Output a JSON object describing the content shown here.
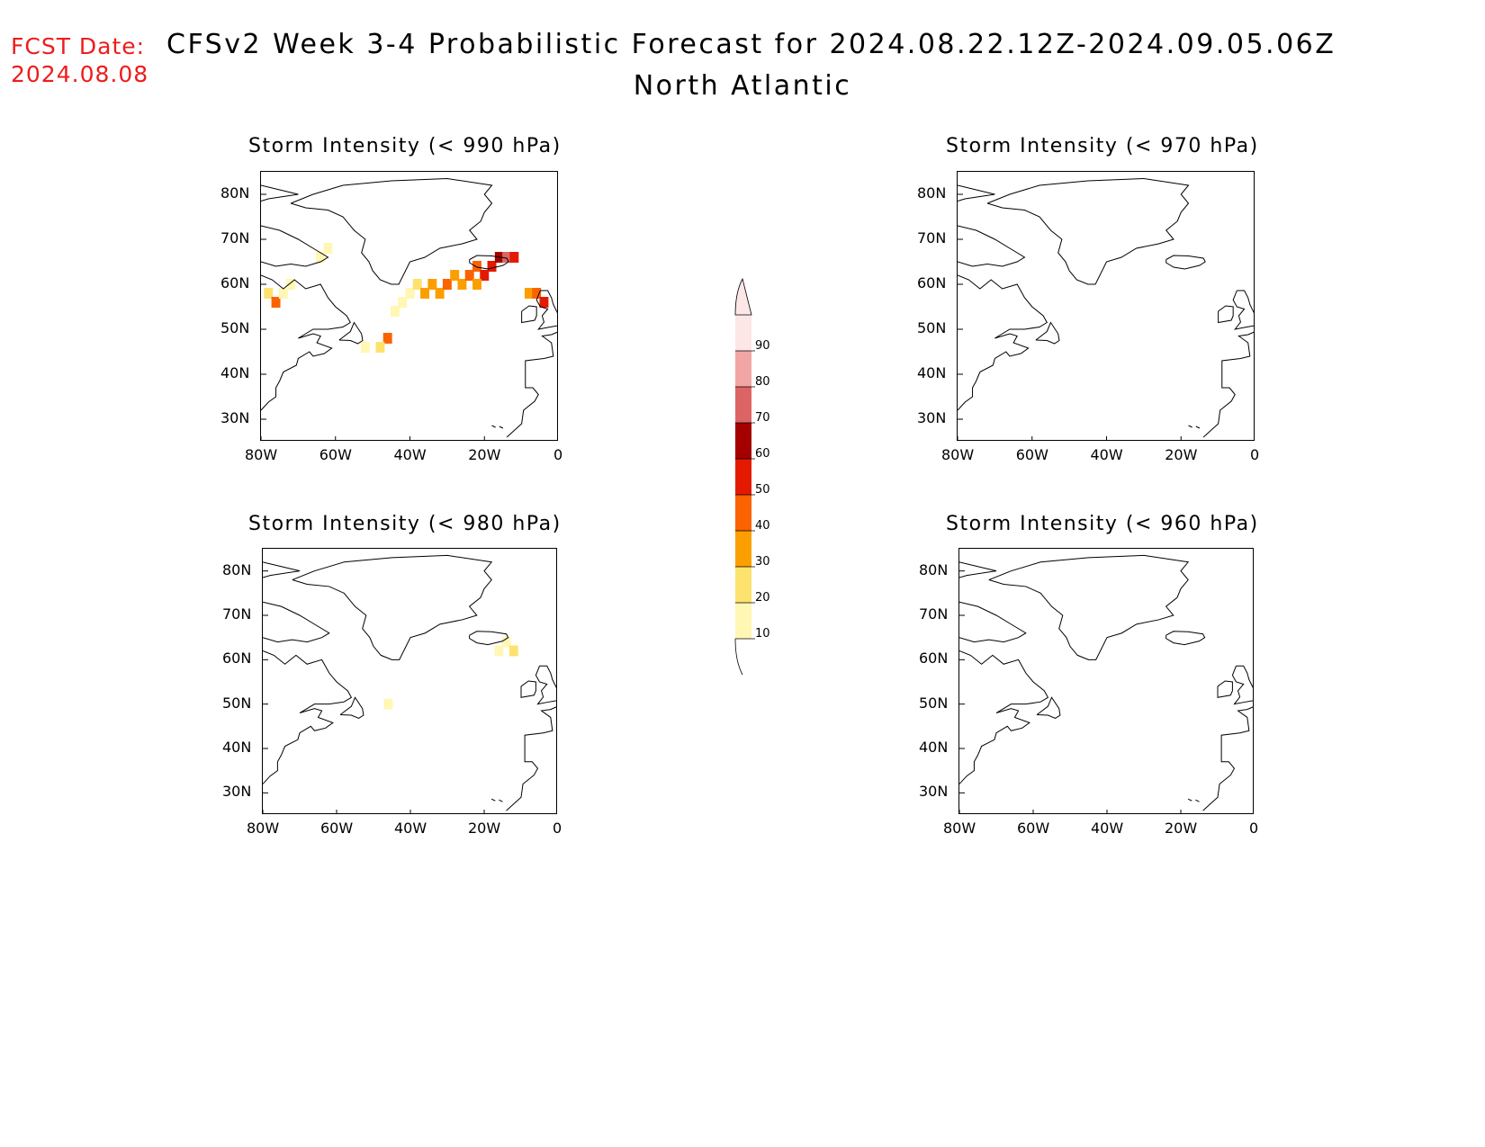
{
  "header": {
    "fcst_label": "FCST Date:",
    "fcst_date": "2024.08.08",
    "title": "CFSv2 Week 3-4 Probabilistic Forecast for 2024.08.22.12Z-2024.09.05.06Z",
    "subtitle": "North Atlantic"
  },
  "panels": [
    {
      "id": "p990",
      "title": "Storm Intensity (< 990 hPa)"
    },
    {
      "id": "p970",
      "title": "Storm Intensity (< 970 hPa)"
    },
    {
      "id": "p980",
      "title": "Storm Intensity (< 980 hPa)"
    },
    {
      "id": "p960",
      "title": "Storm Intensity (< 960 hPa)"
    }
  ],
  "axes": {
    "lat_labels": [
      "80N",
      "70N",
      "60N",
      "50N",
      "40N",
      "30N"
    ],
    "lon_labels": [
      "80W",
      "60W",
      "40W",
      "20W",
      "0"
    ],
    "lat_range": [
      25,
      85
    ],
    "lon_range": [
      -80,
      0
    ]
  },
  "colorbar": {
    "levels": [
      "10",
      "20",
      "30",
      "40",
      "50",
      "60",
      "70",
      "80",
      "90"
    ],
    "colors": [
      "#fff7b3",
      "#fde26e",
      "#fb9f00",
      "#fb6200",
      "#e31a00",
      "#a50000",
      "#dc6464",
      "#f2a5a5",
      "#fde6e6"
    ]
  },
  "chart_data": {
    "type": "heatmap",
    "units": "probability (%)",
    "panels": {
      "p990": [
        {
          "lon": -62,
          "lat": 68,
          "level": 1
        },
        {
          "lon": -64,
          "lat": 66,
          "level": 1
        },
        {
          "lon": -78,
          "lat": 58,
          "level": 2
        },
        {
          "lon": -76,
          "lat": 56,
          "level": 4
        },
        {
          "lon": -74,
          "lat": 58,
          "level": 1
        },
        {
          "lon": -72,
          "lat": 60,
          "level": 1
        },
        {
          "lon": -40,
          "lat": 58,
          "level": 1
        },
        {
          "lon": -38,
          "lat": 60,
          "level": 2
        },
        {
          "lon": -36,
          "lat": 58,
          "level": 3
        },
        {
          "lon": -34,
          "lat": 60,
          "level": 3
        },
        {
          "lon": -32,
          "lat": 58,
          "level": 3
        },
        {
          "lon": -30,
          "lat": 60,
          "level": 4
        },
        {
          "lon": -28,
          "lat": 62,
          "level": 3
        },
        {
          "lon": -26,
          "lat": 60,
          "level": 3
        },
        {
          "lon": -24,
          "lat": 62,
          "level": 4
        },
        {
          "lon": -22,
          "lat": 64,
          "level": 4
        },
        {
          "lon": -20,
          "lat": 62,
          "level": 5
        },
        {
          "lon": -18,
          "lat": 64,
          "level": 5
        },
        {
          "lon": -16,
          "lat": 66,
          "level": 6
        },
        {
          "lon": -14,
          "lat": 66,
          "level": 7
        },
        {
          "lon": -12,
          "lat": 66,
          "level": 5
        },
        {
          "lon": -22,
          "lat": 60,
          "level": 3
        },
        {
          "lon": -42,
          "lat": 56,
          "level": 1
        },
        {
          "lon": -44,
          "lat": 54,
          "level": 1
        },
        {
          "lon": -46,
          "lat": 48,
          "level": 4
        },
        {
          "lon": -48,
          "lat": 46,
          "level": 2
        },
        {
          "lon": -52,
          "lat": 46,
          "level": 1
        },
        {
          "lon": -8,
          "lat": 58,
          "level": 3
        },
        {
          "lon": -6,
          "lat": 58,
          "level": 4
        },
        {
          "lon": -4,
          "lat": 56,
          "level": 5
        }
      ],
      "p970": [],
      "p980": [
        {
          "lon": -14,
          "lat": 64,
          "level": 1
        },
        {
          "lon": -16,
          "lat": 62,
          "level": 1
        },
        {
          "lon": -12,
          "lat": 62,
          "level": 2
        },
        {
          "lon": -46,
          "lat": 50,
          "level": 1
        }
      ],
      "p960": []
    }
  }
}
